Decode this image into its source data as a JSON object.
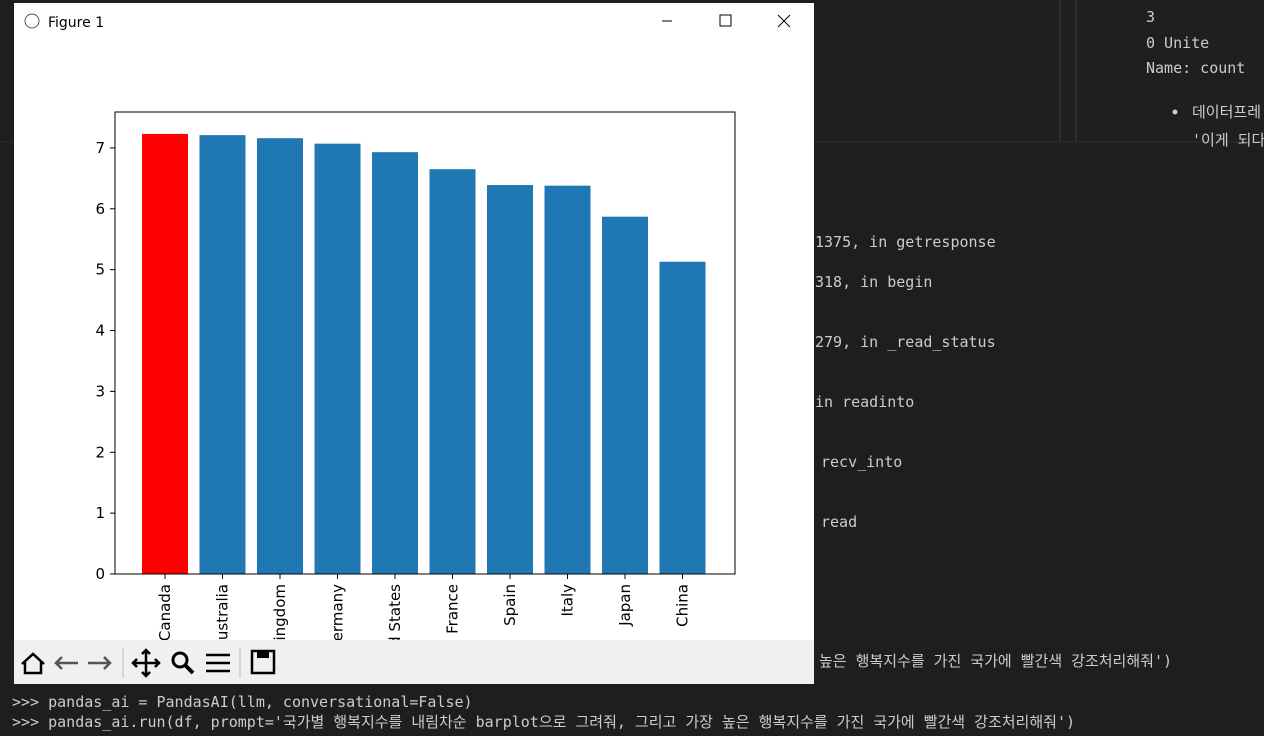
{
  "window": {
    "title": "Figure 1"
  },
  "chart_data": {
    "type": "bar",
    "categories": [
      "Canada",
      "Australia",
      "United Kingdom",
      "Germany",
      "United States",
      "France",
      "Spain",
      "Italy",
      "Japan",
      "China"
    ],
    "values": [
      7.23,
      7.21,
      7.16,
      7.07,
      6.93,
      6.65,
      6.39,
      6.38,
      5.87,
      5.13
    ],
    "colors": [
      "#ff0000",
      "#1f77b4",
      "#1f77b4",
      "#1f77b4",
      "#1f77b4",
      "#1f77b4",
      "#1f77b4",
      "#1f77b4",
      "#1f77b4",
      "#1f77b4"
    ],
    "ylim": [
      0,
      7.59
    ],
    "yticks": [
      0,
      1,
      2,
      3,
      4,
      5,
      6,
      7
    ],
    "grid": false
  },
  "side_panel": {
    "lines": [
      "3",
      "0     Unite",
      "Name: count"
    ],
    "bullets": [
      "데이터프레",
      "'이게 되다"
    ]
  },
  "terminal": {
    "fragments": [
      "1375, in getresponse",
      "318, in begin",
      "279, in _read_status",
      "in readinto",
      "recv_into",
      "read",
      "높은 행복지수를 가진 국가에 빨간색 강조처리해줘')"
    ],
    "lines": [
      ">>> pandas_ai = PandasAI(llm, conversational=False)",
      ">>> pandas_ai.run(df, prompt='국가별 행복지수를 내림차순 barplot으로 그려줘, 그리고 가장 높은 행복지수를 가진 국가에 빨간색 강조처리해줘')"
    ]
  }
}
